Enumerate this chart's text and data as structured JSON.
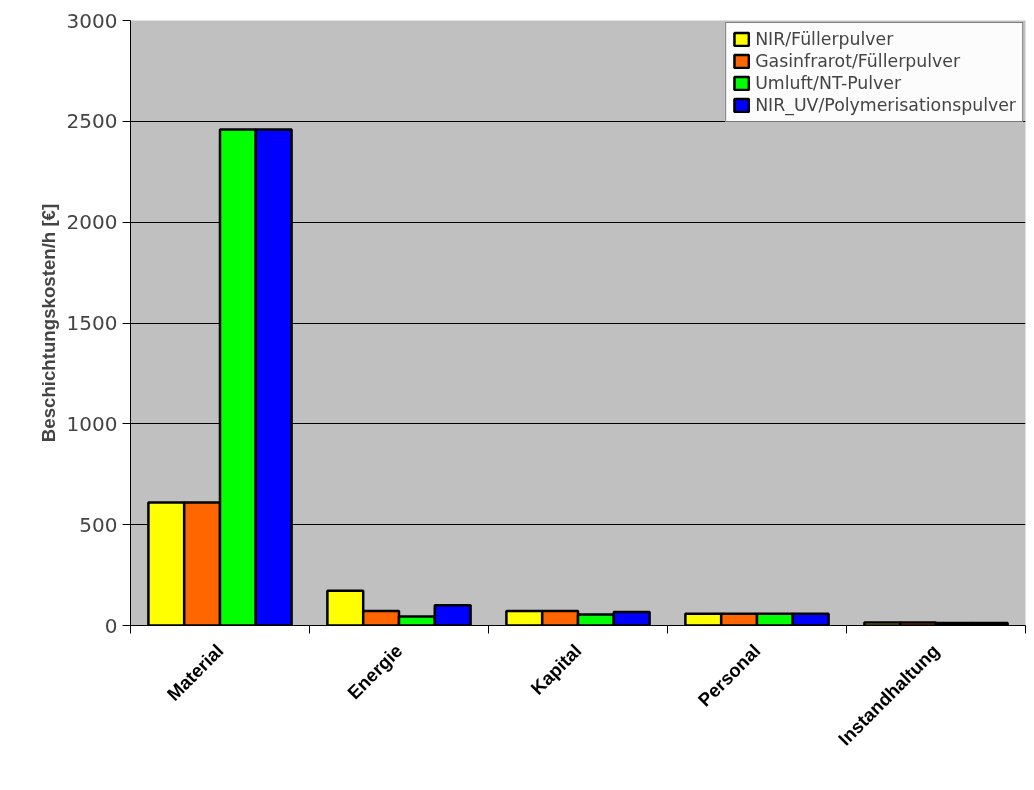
{
  "chart_data": {
    "type": "bar",
    "ylabel": "Beschichtungskosten/h [€]",
    "categories": [
      "Material",
      "Energie",
      "Kapital",
      "Personal",
      "Instandhaltung"
    ],
    "series": [
      {
        "name": "NIR/Füllerpulver",
        "color": "#ffff00",
        "values": [
          610,
          172,
          72,
          58,
          15
        ]
      },
      {
        "name": "Gasinfrarot/Füllerpulver",
        "color": "#ff6600",
        "values": [
          610,
          72,
          72,
          58,
          15
        ]
      },
      {
        "name": "Umluft/NT-Pulver",
        "color": "#00ff00",
        "values": [
          2460,
          45,
          55,
          58,
          12
        ]
      },
      {
        "name": "NIR_UV/Polymerisationspulver",
        "color": "#0000ff",
        "values": [
          2460,
          100,
          67,
          58,
          12
        ]
      }
    ],
    "ylim": [
      0,
      3000
    ],
    "yticks": [
      0,
      500,
      1000,
      1500,
      2000,
      2500,
      3000
    ],
    "grid": "y",
    "legend": "top right"
  }
}
